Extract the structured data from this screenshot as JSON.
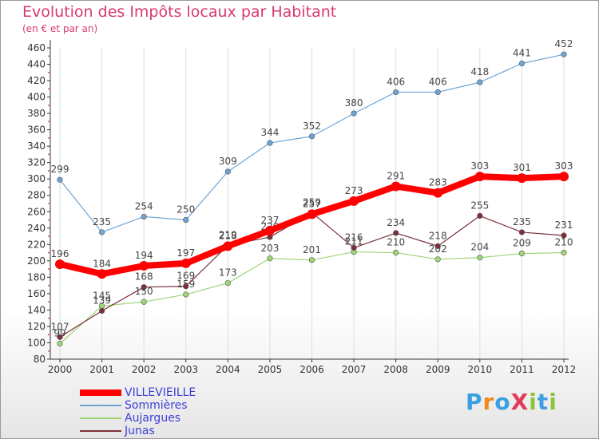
{
  "chart_data": {
    "type": "line",
    "title": "Evolution des Impôts locaux par Habitant",
    "subtitle": "(en € et par an)",
    "xlabel": "",
    "ylabel": "",
    "x": [
      "2000",
      "2001",
      "2002",
      "2003",
      "2004",
      "2005",
      "2006",
      "2007",
      "2008",
      "2009",
      "2010",
      "2011",
      "2012"
    ],
    "ylim": [
      80,
      460
    ],
    "yticks": [
      80,
      100,
      120,
      140,
      160,
      180,
      200,
      220,
      240,
      260,
      280,
      300,
      320,
      340,
      360,
      380,
      400,
      420,
      440,
      460
    ],
    "grid": "vertical",
    "legend_position": "bottom-left",
    "series": [
      {
        "name": "VILLEVIEILLE",
        "color": "#ff0000",
        "values": [
          196,
          184,
          194,
          197,
          218,
          237,
          257,
          273,
          291,
          283,
          303,
          301,
          303
        ]
      },
      {
        "name": "Sommières",
        "color": "#6fa4d4",
        "values": [
          299,
          235,
          254,
          250,
          309,
          344,
          352,
          380,
          406,
          406,
          418,
          441,
          452
        ]
      },
      {
        "name": "Aujargues",
        "color": "#9fd676",
        "values": [
          99,
          145,
          150,
          159,
          173,
          203,
          201,
          211,
          210,
          202,
          204,
          209,
          210
        ]
      },
      {
        "name": "Junas",
        "color": "#7a2f3a",
        "values": [
          107,
          139,
          168,
          169,
          219,
          229,
          259,
          216,
          234,
          218,
          255,
          235,
          231
        ]
      }
    ]
  },
  "logo": {
    "text": "ProXiti",
    "colors": [
      "#3aa0e0",
      "#f08a1e",
      "#3aa0e0",
      "#e23a5a",
      "#8ac43a",
      "#3aa0e0",
      "#8ac43a"
    ]
  }
}
